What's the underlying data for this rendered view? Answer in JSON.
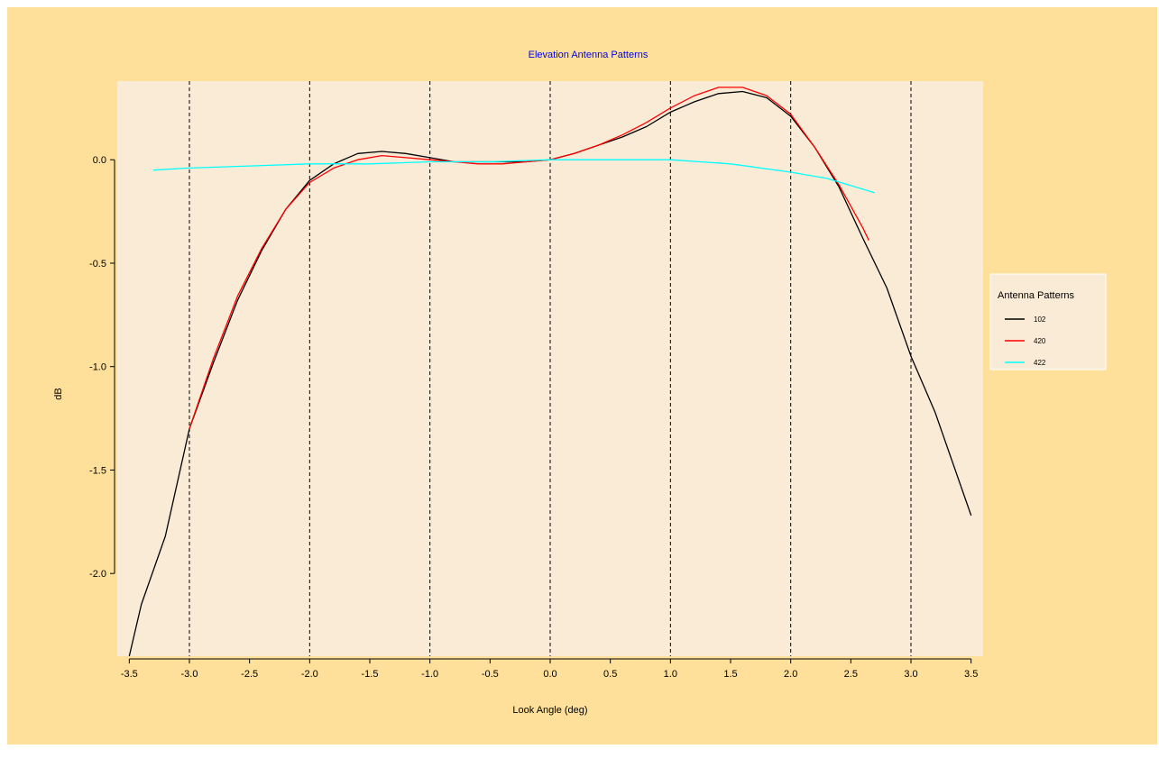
{
  "chart_data": {
    "type": "line",
    "title": "Elevation Antenna Patterns",
    "xlabel": "Look Angle (deg)",
    "ylabel": "dB",
    "xlim": [
      -3.6,
      3.6
    ],
    "ylim": [
      -2.4,
      0.38
    ],
    "x_ticks": [
      -3.5,
      -3.0,
      -2.5,
      -2.0,
      -1.5,
      -1.0,
      -0.5,
      0.0,
      0.5,
      1.0,
      1.5,
      2.0,
      2.5,
      3.0,
      3.5
    ],
    "x_tick_labels": [
      "-3.5",
      "-3.0",
      "-2.5",
      "-2.0",
      "-1.5",
      "-1.0",
      "-0.5",
      "0.0",
      "0.5",
      "1.0",
      "1.5",
      "2.0",
      "2.5",
      "3.0",
      "3.5"
    ],
    "y_ticks": [
      0.0,
      -0.5,
      -1.0,
      -1.5,
      -2.0
    ],
    "y_tick_labels": [
      "0.0",
      "-0.5",
      "-1.0",
      "-1.5",
      "-2.0"
    ],
    "vertical_grid_at": [
      -3.0,
      -2.0,
      -1.0,
      0.0,
      1.0,
      2.0,
      3.0
    ],
    "grid": "vertical dashed",
    "legend": {
      "title": "Antenna Patterns",
      "placement": "right"
    },
    "series": [
      {
        "name": "102",
        "color": "#000000",
        "points": [
          [
            -3.5,
            -2.4
          ],
          [
            -3.4,
            -2.15
          ],
          [
            -3.2,
            -1.82
          ],
          [
            -3.0,
            -1.3
          ],
          [
            -2.8,
            -0.98
          ],
          [
            -2.6,
            -0.68
          ],
          [
            -2.4,
            -0.44
          ],
          [
            -2.2,
            -0.24
          ],
          [
            -2.0,
            -0.1
          ],
          [
            -1.8,
            -0.02
          ],
          [
            -1.6,
            0.03
          ],
          [
            -1.4,
            0.04
          ],
          [
            -1.2,
            0.03
          ],
          [
            -1.0,
            0.01
          ],
          [
            -0.8,
            -0.01
          ],
          [
            -0.6,
            -0.01
          ],
          [
            -0.4,
            -0.01
          ],
          [
            -0.2,
            -0.01
          ],
          [
            0.0,
            0.0
          ],
          [
            0.2,
            0.03
          ],
          [
            0.4,
            0.07
          ],
          [
            0.6,
            0.11
          ],
          [
            0.8,
            0.16
          ],
          [
            1.0,
            0.23
          ],
          [
            1.2,
            0.28
          ],
          [
            1.4,
            0.32
          ],
          [
            1.6,
            0.33
          ],
          [
            1.8,
            0.3
          ],
          [
            2.0,
            0.21
          ],
          [
            2.2,
            0.06
          ],
          [
            2.4,
            -0.13
          ],
          [
            2.6,
            -0.38
          ],
          [
            2.8,
            -0.62
          ],
          [
            3.0,
            -0.95
          ],
          [
            3.2,
            -1.22
          ],
          [
            3.5,
            -1.72
          ]
        ]
      },
      {
        "name": "420",
        "color": "#FF0000",
        "points": [
          [
            -3.0,
            -1.3
          ],
          [
            -2.8,
            -0.96
          ],
          [
            -2.6,
            -0.66
          ],
          [
            -2.4,
            -0.43
          ],
          [
            -2.2,
            -0.24
          ],
          [
            -2.0,
            -0.11
          ],
          [
            -1.8,
            -0.04
          ],
          [
            -1.6,
            0.0
          ],
          [
            -1.4,
            0.02
          ],
          [
            -1.2,
            0.01
          ],
          [
            -1.0,
            0.0
          ],
          [
            -0.8,
            -0.01
          ],
          [
            -0.6,
            -0.02
          ],
          [
            -0.4,
            -0.02
          ],
          [
            -0.2,
            -0.01
          ],
          [
            0.0,
            0.0
          ],
          [
            0.2,
            0.03
          ],
          [
            0.4,
            0.07
          ],
          [
            0.6,
            0.12
          ],
          [
            0.8,
            0.18
          ],
          [
            1.0,
            0.25
          ],
          [
            1.2,
            0.31
          ],
          [
            1.4,
            0.35
          ],
          [
            1.6,
            0.35
          ],
          [
            1.8,
            0.31
          ],
          [
            2.0,
            0.22
          ],
          [
            2.2,
            0.06
          ],
          [
            2.4,
            -0.12
          ],
          [
            2.6,
            -0.33
          ],
          [
            2.65,
            -0.39
          ]
        ]
      },
      {
        "name": "422",
        "color": "#00FFFF",
        "points": [
          [
            -3.3,
            -0.05
          ],
          [
            -3.0,
            -0.04
          ],
          [
            -2.5,
            -0.03
          ],
          [
            -2.0,
            -0.02
          ],
          [
            -1.5,
            -0.02
          ],
          [
            -1.0,
            -0.01
          ],
          [
            -0.5,
            -0.01
          ],
          [
            0.0,
            0.0
          ],
          [
            0.5,
            0.0
          ],
          [
            1.0,
            0.0
          ],
          [
            1.5,
            -0.02
          ],
          [
            2.0,
            -0.06
          ],
          [
            2.3,
            -0.09
          ],
          [
            2.7,
            -0.16
          ]
        ]
      }
    ]
  }
}
